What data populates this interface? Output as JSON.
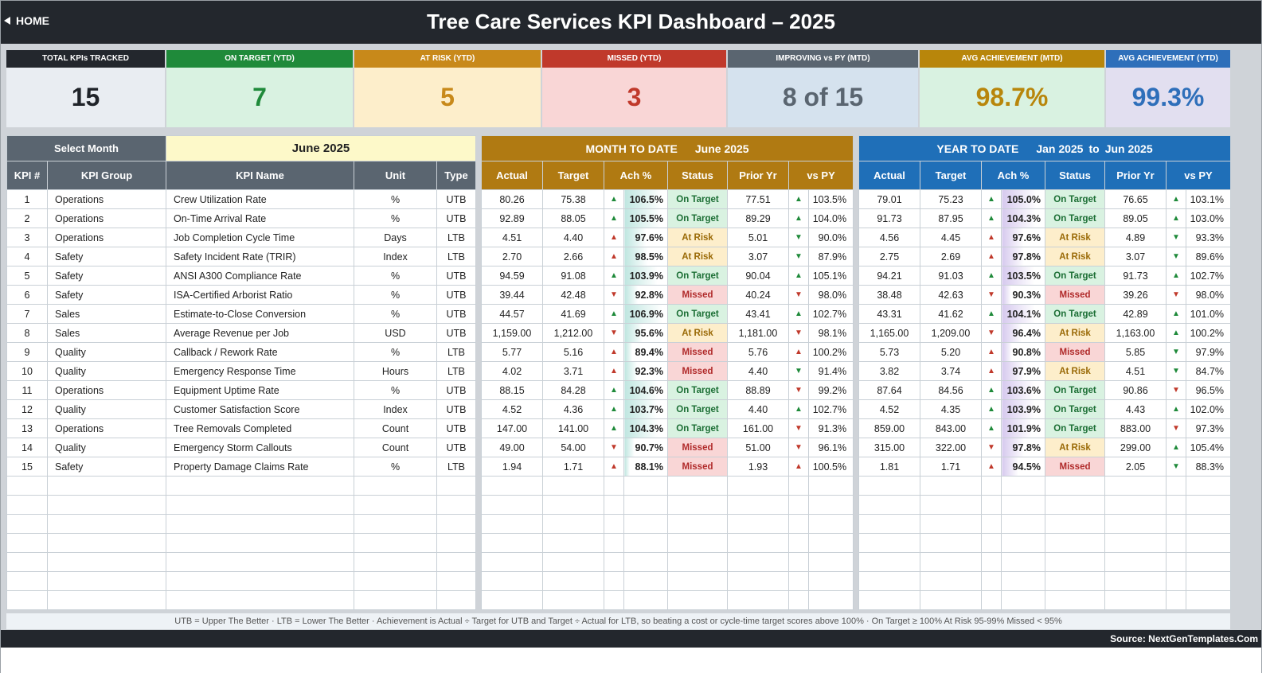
{
  "header": {
    "home_label": "HOME",
    "title": "Tree Care Services KPI Dashboard   –   2025"
  },
  "kpi_cards": [
    {
      "label": "TOTAL KPIs TRACKED",
      "value": "15",
      "header_color": "#23272d",
      "bg": "#e9edf2",
      "value_color": "#1f2329"
    },
    {
      "label": "ON TARGET (YTD)",
      "value": "7",
      "header_color": "#1f8a3a",
      "bg": "#d9f2e1",
      "value_color": "#1f8a3a"
    },
    {
      "label": "AT RISK (YTD)",
      "value": "5",
      "header_color": "#c8891a",
      "bg": "#fdeecb",
      "value_color": "#c8891a"
    },
    {
      "label": "MISSED (YTD)",
      "value": "3",
      "header_color": "#c0392b",
      "bg": "#f9d6d6",
      "value_color": "#c0392b"
    },
    {
      "label": "IMPROVING vs PY (MTD)",
      "value": "8 of 15",
      "header_color": "#5a6570",
      "bg": "#d5e2ee",
      "value_color": "#5a6570"
    },
    {
      "label": "AVG ACHIEVEMENT (MTD)",
      "value": "98.7%",
      "header_color": "#b8860b",
      "bg": "#d9f2e1",
      "value_color": "#b8860b"
    },
    {
      "label": "AVG ACHIEVEMENT (YTD)",
      "value": "99.3%",
      "header_color": "#2e6fba",
      "bg": "#e2dff0",
      "value_color": "#2e6fba"
    }
  ],
  "selector": {
    "label": "Select Month",
    "value": "June 2025"
  },
  "left_headers": [
    "KPI #",
    "KPI Group",
    "KPI Name",
    "Unit",
    "Type"
  ],
  "mtd": {
    "title": "MONTH TO DATE",
    "period": "June 2025"
  },
  "ytd": {
    "title": "YEAR TO DATE",
    "period_start": "Jan 2025",
    "period_to": "to",
    "period_end": "Jun 2025"
  },
  "metric_headers": [
    "Actual",
    "Target",
    "Ach %",
    "Status",
    "Prior Yr",
    "vs PY"
  ],
  "rows": [
    {
      "n": "1",
      "group": "Operations",
      "name": "Crew Utilization Rate",
      "unit": "%",
      "type": "UTB",
      "mtd": {
        "actual": "80.26",
        "target": "75.38",
        "ach_dir": "up",
        "ach": "106.5%",
        "status": "On Target",
        "prior": "77.51",
        "py_dir": "up",
        "vspy": "103.5%"
      },
      "ytd": {
        "actual": "79.01",
        "target": "75.23",
        "ach_dir": "up",
        "ach": "105.0%",
        "status": "On Target",
        "prior": "76.65",
        "py_dir": "up",
        "vspy": "103.1%"
      }
    },
    {
      "n": "2",
      "group": "Operations",
      "name": "On-Time Arrival Rate",
      "unit": "%",
      "type": "UTB",
      "mtd": {
        "actual": "92.89",
        "target": "88.05",
        "ach_dir": "up",
        "ach": "105.5%",
        "status": "On Target",
        "prior": "89.29",
        "py_dir": "up",
        "vspy": "104.0%"
      },
      "ytd": {
        "actual": "91.73",
        "target": "87.95",
        "ach_dir": "up",
        "ach": "104.3%",
        "status": "On Target",
        "prior": "89.05",
        "py_dir": "up",
        "vspy": "103.0%"
      }
    },
    {
      "n": "3",
      "group": "Operations",
      "name": "Job Completion Cycle Time",
      "unit": "Days",
      "type": "LTB",
      "mtd": {
        "actual": "4.51",
        "target": "4.40",
        "ach_dir": "up-red",
        "ach": "97.6%",
        "status": "At Risk",
        "prior": "5.01",
        "py_dir": "down-green",
        "vspy": "90.0%"
      },
      "ytd": {
        "actual": "4.56",
        "target": "4.45",
        "ach_dir": "up-red",
        "ach": "97.6%",
        "status": "At Risk",
        "prior": "4.89",
        "py_dir": "down-green",
        "vspy": "93.3%"
      }
    },
    {
      "n": "4",
      "group": "Safety",
      "name": "Safety Incident Rate (TRIR)",
      "unit": "Index",
      "type": "LTB",
      "mtd": {
        "actual": "2.70",
        "target": "2.66",
        "ach_dir": "up-red",
        "ach": "98.5%",
        "status": "At Risk",
        "prior": "3.07",
        "py_dir": "down-green",
        "vspy": "87.9%"
      },
      "ytd": {
        "actual": "2.75",
        "target": "2.69",
        "ach_dir": "up-red",
        "ach": "97.8%",
        "status": "At Risk",
        "prior": "3.07",
        "py_dir": "down-green",
        "vspy": "89.6%"
      }
    },
    {
      "n": "5",
      "group": "Safety",
      "name": "ANSI A300 Compliance Rate",
      "unit": "%",
      "type": "UTB",
      "mtd": {
        "actual": "94.59",
        "target": "91.08",
        "ach_dir": "up",
        "ach": "103.9%",
        "status": "On Target",
        "prior": "90.04",
        "py_dir": "up",
        "vspy": "105.1%"
      },
      "ytd": {
        "actual": "94.21",
        "target": "91.03",
        "ach_dir": "up",
        "ach": "103.5%",
        "status": "On Target",
        "prior": "91.73",
        "py_dir": "up",
        "vspy": "102.7%"
      }
    },
    {
      "n": "6",
      "group": "Safety",
      "name": "ISA-Certified Arborist Ratio",
      "unit": "%",
      "type": "UTB",
      "mtd": {
        "actual": "39.44",
        "target": "42.48",
        "ach_dir": "down",
        "ach": "92.8%",
        "status": "Missed",
        "prior": "40.24",
        "py_dir": "down",
        "vspy": "98.0%"
      },
      "ytd": {
        "actual": "38.48",
        "target": "42.63",
        "ach_dir": "down",
        "ach": "90.3%",
        "status": "Missed",
        "prior": "39.26",
        "py_dir": "down",
        "vspy": "98.0%"
      }
    },
    {
      "n": "7",
      "group": "Sales",
      "name": "Estimate-to-Close Conversion",
      "unit": "%",
      "type": "UTB",
      "mtd": {
        "actual": "44.57",
        "target": "41.69",
        "ach_dir": "up",
        "ach": "106.9%",
        "status": "On Target",
        "prior": "43.41",
        "py_dir": "up",
        "vspy": "102.7%"
      },
      "ytd": {
        "actual": "43.31",
        "target": "41.62",
        "ach_dir": "up",
        "ach": "104.1%",
        "status": "On Target",
        "prior": "42.89",
        "py_dir": "up",
        "vspy": "101.0%"
      }
    },
    {
      "n": "8",
      "group": "Sales",
      "name": "Average Revenue per Job",
      "unit": "USD",
      "type": "UTB",
      "mtd": {
        "actual": "1,159.00",
        "target": "1,212.00",
        "ach_dir": "down",
        "ach": "95.6%",
        "status": "At Risk",
        "prior": "1,181.00",
        "py_dir": "down",
        "vspy": "98.1%"
      },
      "ytd": {
        "actual": "1,165.00",
        "target": "1,209.00",
        "ach_dir": "down",
        "ach": "96.4%",
        "status": "At Risk",
        "prior": "1,163.00",
        "py_dir": "up",
        "vspy": "100.2%"
      }
    },
    {
      "n": "9",
      "group": "Quality",
      "name": "Callback / Rework Rate",
      "unit": "%",
      "type": "LTB",
      "mtd": {
        "actual": "5.77",
        "target": "5.16",
        "ach_dir": "up-red",
        "ach": "89.4%",
        "status": "Missed",
        "prior": "5.76",
        "py_dir": "up-red",
        "vspy": "100.2%"
      },
      "ytd": {
        "actual": "5.73",
        "target": "5.20",
        "ach_dir": "up-red",
        "ach": "90.8%",
        "status": "Missed",
        "prior": "5.85",
        "py_dir": "down-green",
        "vspy": "97.9%"
      }
    },
    {
      "n": "10",
      "group": "Quality",
      "name": "Emergency Response Time",
      "unit": "Hours",
      "type": "LTB",
      "mtd": {
        "actual": "4.02",
        "target": "3.71",
        "ach_dir": "up-red",
        "ach": "92.3%",
        "status": "Missed",
        "prior": "4.40",
        "py_dir": "down-green",
        "vspy": "91.4%"
      },
      "ytd": {
        "actual": "3.82",
        "target": "3.74",
        "ach_dir": "up-red",
        "ach": "97.9%",
        "status": "At Risk",
        "prior": "4.51",
        "py_dir": "down-green",
        "vspy": "84.7%"
      }
    },
    {
      "n": "11",
      "group": "Operations",
      "name": "Equipment Uptime Rate",
      "unit": "%",
      "type": "UTB",
      "mtd": {
        "actual": "88.15",
        "target": "84.28",
        "ach_dir": "up",
        "ach": "104.6%",
        "status": "On Target",
        "prior": "88.89",
        "py_dir": "down",
        "vspy": "99.2%"
      },
      "ytd": {
        "actual": "87.64",
        "target": "84.56",
        "ach_dir": "up",
        "ach": "103.6%",
        "status": "On Target",
        "prior": "90.86",
        "py_dir": "down",
        "vspy": "96.5%"
      }
    },
    {
      "n": "12",
      "group": "Quality",
      "name": "Customer Satisfaction Score",
      "unit": "Index",
      "type": "UTB",
      "mtd": {
        "actual": "4.52",
        "target": "4.36",
        "ach_dir": "up",
        "ach": "103.7%",
        "status": "On Target",
        "prior": "4.40",
        "py_dir": "up",
        "vspy": "102.7%"
      },
      "ytd": {
        "actual": "4.52",
        "target": "4.35",
        "ach_dir": "up",
        "ach": "103.9%",
        "status": "On Target",
        "prior": "4.43",
        "py_dir": "up",
        "vspy": "102.0%"
      }
    },
    {
      "n": "13",
      "group": "Operations",
      "name": "Tree Removals Completed",
      "unit": "Count",
      "type": "UTB",
      "mtd": {
        "actual": "147.00",
        "target": "141.00",
        "ach_dir": "up",
        "ach": "104.3%",
        "status": "On Target",
        "prior": "161.00",
        "py_dir": "down",
        "vspy": "91.3%"
      },
      "ytd": {
        "actual": "859.00",
        "target": "843.00",
        "ach_dir": "up",
        "ach": "101.9%",
        "status": "On Target",
        "prior": "883.00",
        "py_dir": "down",
        "vspy": "97.3%"
      }
    },
    {
      "n": "14",
      "group": "Quality",
      "name": "Emergency Storm Callouts",
      "unit": "Count",
      "type": "UTB",
      "mtd": {
        "actual": "49.00",
        "target": "54.00",
        "ach_dir": "down",
        "ach": "90.7%",
        "status": "Missed",
        "prior": "51.00",
        "py_dir": "down",
        "vspy": "96.1%"
      },
      "ytd": {
        "actual": "315.00",
        "target": "322.00",
        "ach_dir": "down",
        "ach": "97.8%",
        "status": "At Risk",
        "prior": "299.00",
        "py_dir": "up",
        "vspy": "105.4%"
      }
    },
    {
      "n": "15",
      "group": "Safety",
      "name": "Property Damage Claims Rate",
      "unit": "%",
      "type": "LTB",
      "mtd": {
        "actual": "1.94",
        "target": "1.71",
        "ach_dir": "up-red",
        "ach": "88.1%",
        "status": "Missed",
        "prior": "1.93",
        "py_dir": "up-red",
        "vspy": "100.5%"
      },
      "ytd": {
        "actual": "1.81",
        "target": "1.71",
        "ach_dir": "up-red",
        "ach": "94.5%",
        "status": "Missed",
        "prior": "2.05",
        "py_dir": "down-green",
        "vspy": "88.3%"
      }
    }
  ],
  "legend": "UTB = Upper The Better   ·   LTB = Lower The Better   ·   Achievement is Actual ÷ Target for UTB and Target ÷ Actual for LTB, so beating a cost or cycle-time target scores above 100%   ·   On Target ≥ 100%    At Risk 95-99%    Missed < 95%",
  "source": "Source: NextGenTemplates.Com",
  "colors": {
    "dark": "#23272d",
    "left_header": "#5a6570",
    "mtd_header": "#b07a12",
    "ytd_header": "#1f6fb8",
    "selector_bg": "#fdf9c9"
  }
}
